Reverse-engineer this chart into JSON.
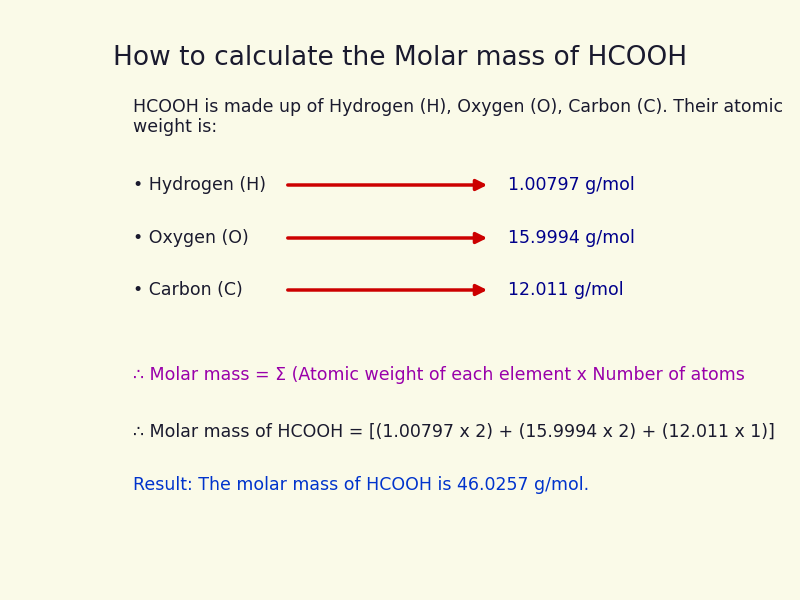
{
  "background_color": "#fafae8",
  "title": "How to calculate the Molar mass of HCOOH",
  "title_color": "#1a1a2e",
  "title_fontsize": 19,
  "intro_line1": "HCOOH is made up of Hydrogen (H), Oxygen (O), Carbon (C). Their atomic",
  "intro_line2": "weight is:",
  "intro_color": "#1a1a2e",
  "intro_fontsize": 12.5,
  "elements": [
    {
      "label": "• Hydrogen (H)",
      "value": "1.00797 g/mol"
    },
    {
      "label": "• Oxygen (O)",
      "value": "15.9994 g/mol"
    },
    {
      "label": "• Carbon (C)",
      "value": "12.011 g/mol"
    }
  ],
  "element_label_color": "#1a1a2e",
  "element_value_color": "#00008b",
  "element_fontsize": 12.5,
  "arrow_color": "#cc0000",
  "formula_line1_color": "#9900aa",
  "formula_line1": "∴ Molar mass = Σ (Atomic weight of each element x Number of atoms",
  "formula_line1_fontsize": 12.5,
  "formula_line2_color": "#1a1a2e",
  "formula_line2": "∴ Molar mass of HCOOH = [(1.00797 x 2) + (15.9994 x 2) + (12.011 x 1)]",
  "formula_line2_fontsize": 12.5,
  "result_text": "Result: The molar mass of HCOOH is 46.0257 g/mol.",
  "result_color": "#0033cc",
  "result_fontsize": 12.5
}
